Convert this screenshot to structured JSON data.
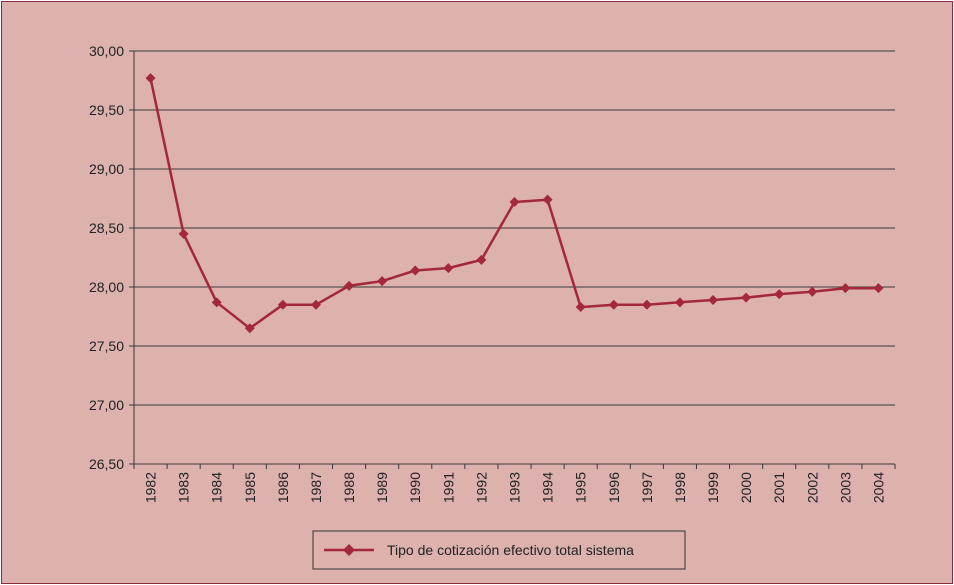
{
  "chart_data": {
    "type": "line",
    "title": "",
    "xlabel": "",
    "ylabel": "",
    "ylim": [
      26.5,
      30.0
    ],
    "y_ticks": [
      "26,50",
      "27,00",
      "27,50",
      "28,00",
      "28,50",
      "29,00",
      "29,50",
      "30,00"
    ],
    "categories": [
      "1982",
      "1983",
      "1984",
      "1985",
      "1986",
      "1987",
      "1988",
      "1989",
      "1990",
      "1991",
      "1992",
      "1993",
      "1994",
      "1995",
      "1996",
      "1997",
      "1998",
      "1999",
      "2000",
      "2001",
      "2002",
      "2003",
      "2004"
    ],
    "series": [
      {
        "name": "Tipo de cotización efectivo total sistema",
        "values": [
          29.77,
          28.45,
          27.87,
          27.65,
          27.85,
          27.85,
          28.01,
          28.05,
          28.14,
          28.16,
          28.23,
          28.72,
          28.74,
          27.83,
          27.85,
          27.85,
          27.87,
          27.89,
          27.91,
          27.94,
          27.96,
          27.99,
          27.99
        ]
      }
    ],
    "grid": "horizontal",
    "legend_position": "bottom",
    "colors": {
      "series": "#a3283c",
      "background": "#dcb1ae",
      "grid": "#3a3a3a",
      "frame": "#8b2a3a"
    }
  }
}
